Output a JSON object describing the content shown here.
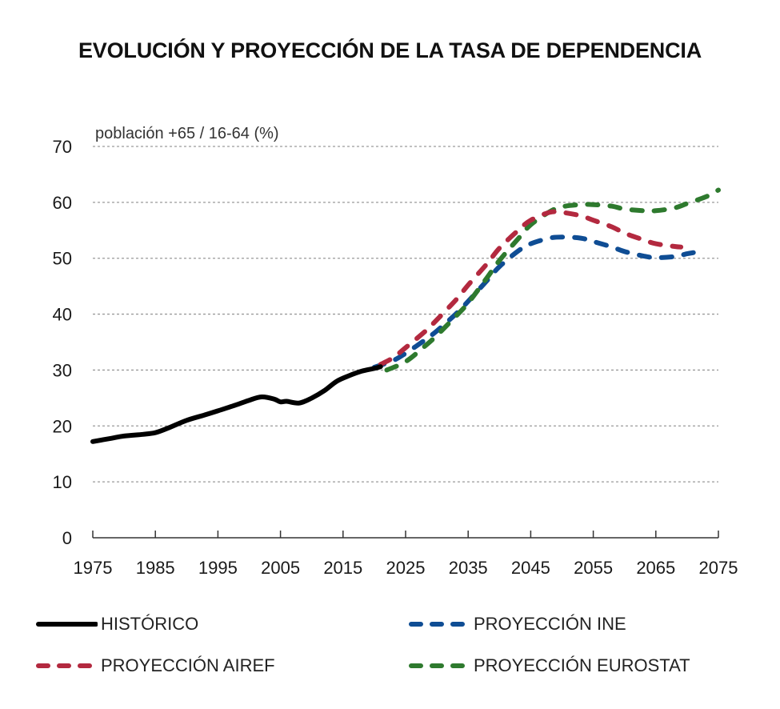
{
  "chart_data": {
    "type": "line",
    "title": "EVOLUCIÓN Y PROYECCIÓN DE LA TASA DE DEPENDENCIA",
    "ylabel": "población +65 / 16-64 (%)",
    "xlabel": "",
    "xlim": [
      1975,
      2075
    ],
    "ylim": [
      0,
      70
    ],
    "xticks": [
      1975,
      1985,
      1995,
      2005,
      2015,
      2025,
      2035,
      2045,
      2055,
      2065,
      2075
    ],
    "yticks": [
      0,
      10,
      20,
      30,
      40,
      50,
      60,
      70
    ],
    "grid": "horizontal dotted",
    "legend_position": "bottom",
    "series": [
      {
        "name": "HISTÓRICO",
        "color": "#000000",
        "style": "solid",
        "x": [
          1975,
          1978,
          1980,
          1983,
          1985,
          1987,
          1990,
          1993,
          1995,
          1998,
          2000,
          2002,
          2004,
          2005,
          2006,
          2008,
          2010,
          2012,
          2014,
          2016,
          2018,
          2020,
          2021
        ],
        "y": [
          17.2,
          17.8,
          18.2,
          18.5,
          18.8,
          19.6,
          21.0,
          22.0,
          22.7,
          23.8,
          24.6,
          25.2,
          24.8,
          24.3,
          24.4,
          24.1,
          25.0,
          26.3,
          28.0,
          29.0,
          29.8,
          30.3,
          30.6
        ]
      },
      {
        "name": "PROYECCIÓN INE",
        "color": "#0f4d94",
        "style": "dashed",
        "x": [
          2020,
          2023,
          2025,
          2028,
          2030,
          2033,
          2035,
          2038,
          2040,
          2043,
          2045,
          2048,
          2050,
          2053,
          2055,
          2058,
          2060,
          2063,
          2065,
          2068,
          2070,
          2071
        ],
        "y": [
          30.5,
          31.7,
          33.0,
          35.3,
          37.0,
          40.0,
          42.3,
          46.0,
          48.5,
          51.3,
          52.6,
          53.6,
          53.8,
          53.6,
          53.0,
          52.0,
          51.2,
          50.4,
          50.1,
          50.3,
          50.8,
          51.0
        ]
      },
      {
        "name": "PROYECCIÓN AIREF",
        "color": "#b3293f",
        "style": "dashed",
        "x": [
          2021,
          2023,
          2025,
          2028,
          2030,
          2033,
          2035,
          2038,
          2040,
          2043,
          2045,
          2048,
          2050,
          2053,
          2055,
          2058,
          2060,
          2063,
          2065,
          2068,
          2069
        ],
        "y": [
          31.0,
          32.2,
          34.0,
          36.8,
          39.0,
          42.5,
          45.2,
          49.0,
          51.8,
          55.0,
          56.8,
          58.2,
          58.2,
          57.6,
          56.8,
          55.6,
          54.5,
          53.3,
          52.6,
          52.1,
          52.0
        ]
      },
      {
        "name": "PROYECCIÓN EUROSTAT",
        "color": "#2e7a2e",
        "style": "dashed",
        "x": [
          2022,
          2025,
          2028,
          2030,
          2033,
          2035,
          2038,
          2040,
          2043,
          2045,
          2048,
          2050,
          2053,
          2055,
          2058,
          2060,
          2063,
          2065,
          2068,
          2070,
          2073,
          2075
        ],
        "y": [
          30.0,
          31.5,
          34.2,
          36.2,
          39.6,
          42.0,
          46.5,
          49.6,
          53.5,
          56.0,
          58.3,
          59.2,
          59.6,
          59.6,
          59.3,
          58.8,
          58.5,
          58.5,
          59.0,
          59.8,
          61.0,
          62.2
        ]
      }
    ]
  },
  "legend": {
    "historico": "HISTÓRICO",
    "ine": "PROYECCIÓN INE",
    "airef": "PROYECCIÓN AIREF",
    "eurostat": "PROYECCIÓN EUROSTAT"
  }
}
